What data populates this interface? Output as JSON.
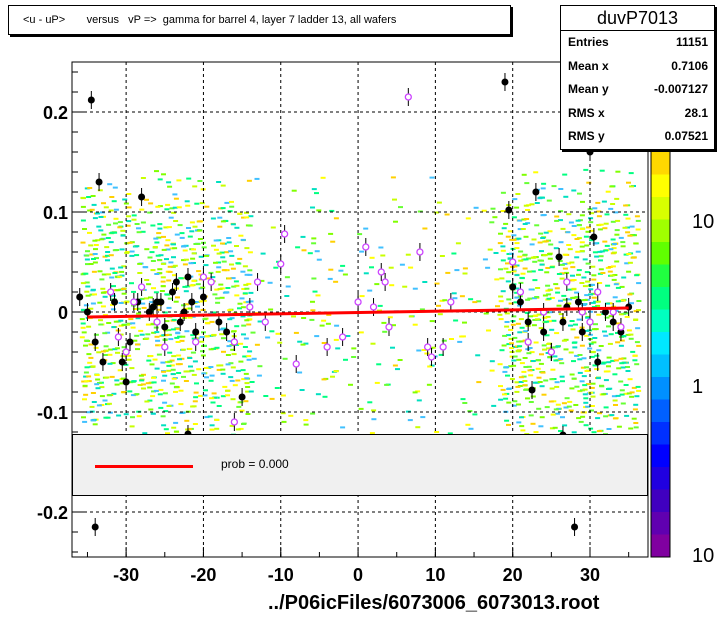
{
  "title": "<u - uP>       versus   vP =>  gamma for barrel 4, layer 7 ladder 13, all wafers",
  "stats": {
    "name": "duvP7013",
    "rows": [
      {
        "label": "Entries",
        "value": "11151"
      },
      {
        "label": "Mean x",
        "value": "0.7106"
      },
      {
        "label": "Mean y",
        "value": "-0.007127"
      },
      {
        "label": "RMS x",
        "value": "28.1"
      },
      {
        "label": "RMS y",
        "value": "0.07521"
      }
    ]
  },
  "legend": {
    "label": "prob = 0.000",
    "color": "#ff0000"
  },
  "footer": "../P06icFiles/6073006_6073013.root",
  "colors": {
    "fit": "#ff0000",
    "marker_black": "#000000",
    "marker_open": "#cc44ff"
  },
  "chart_data": {
    "type": "scatter",
    "xlim": [
      -37,
      37.5
    ],
    "ylim": [
      -0.245,
      0.25
    ],
    "x_ticks": [
      -30,
      -20,
      -10,
      0,
      10,
      20,
      30
    ],
    "x_tick_labels": [
      "-30",
      "-20",
      "-10",
      "0",
      "10",
      "20",
      "30"
    ],
    "y_ticks": [
      -0.2,
      -0.1,
      0,
      0.1,
      0.2
    ],
    "y_tick_labels": [
      "-0.2",
      "-0.1",
      "0",
      "0.1",
      "0.2"
    ],
    "grid": true,
    "colorbar_labels": [
      "10",
      "1",
      "10"
    ],
    "fit_line": {
      "x": [
        -35,
        35
      ],
      "y": [
        -0.005,
        0.004
      ]
    },
    "series": [
      {
        "marker": "filled",
        "points": [
          [
            -34.5,
            0.212
          ],
          [
            -33.5,
            0.13
          ],
          [
            -36,
            0.015
          ],
          [
            -35,
            0.0
          ],
          [
            -34,
            -0.03
          ],
          [
            -33,
            -0.05
          ],
          [
            -31.5,
            0.01
          ],
          [
            -30.5,
            -0.05
          ],
          [
            -30,
            -0.07
          ],
          [
            -29.5,
            -0.03
          ],
          [
            -28.5,
            0.01
          ],
          [
            -28,
            0.115
          ],
          [
            -27,
            0.0
          ],
          [
            -26.5,
            0.005
          ],
          [
            -26,
            0.01
          ],
          [
            -25.5,
            0.01
          ],
          [
            -25,
            -0.015
          ],
          [
            -24,
            0.02
          ],
          [
            -23.5,
            0.03
          ],
          [
            -23,
            -0.01
          ],
          [
            -22.5,
            0.0
          ],
          [
            -22,
            0.035
          ],
          [
            -21.5,
            0.01
          ],
          [
            -21,
            -0.02
          ],
          [
            -20,
            0.015
          ],
          [
            -18,
            -0.01
          ],
          [
            -17,
            -0.02
          ],
          [
            -16,
            -0.03
          ],
          [
            -15,
            -0.085
          ],
          [
            -22,
            -0.122
          ],
          [
            -34,
            -0.215
          ],
          [
            19,
            0.23
          ],
          [
            19.5,
            0.102
          ],
          [
            20,
            0.025
          ],
          [
            21,
            0.01
          ],
          [
            22,
            -0.01
          ],
          [
            22.5,
            -0.078
          ],
          [
            23,
            0.12
          ],
          [
            24,
            -0.02
          ],
          [
            25,
            -0.04
          ],
          [
            26,
            0.055
          ],
          [
            26.5,
            -0.01
          ],
          [
            27,
            0.005
          ],
          [
            28,
            0.2
          ],
          [
            28.5,
            0.01
          ],
          [
            29,
            -0.02
          ],
          [
            30,
            0.16
          ],
          [
            30.5,
            0.075
          ],
          [
            31,
            -0.05
          ],
          [
            32,
            0.0
          ],
          [
            33,
            -0.01
          ],
          [
            34,
            -0.02
          ],
          [
            35,
            0.005
          ],
          [
            26.5,
            -0.123
          ],
          [
            28,
            -0.215
          ]
        ]
      },
      {
        "marker": "open",
        "points": [
          [
            6.5,
            0.215
          ],
          [
            -9.5,
            0.078
          ],
          [
            -10,
            0.048
          ],
          [
            1,
            0.065
          ],
          [
            3,
            0.04
          ],
          [
            3.5,
            0.03
          ],
          [
            8,
            0.06
          ],
          [
            9,
            -0.035
          ],
          [
            9.5,
            -0.045
          ],
          [
            11,
            -0.035
          ],
          [
            12,
            0.01
          ],
          [
            4,
            -0.015
          ],
          [
            -8,
            -0.052
          ],
          [
            -4,
            -0.035
          ],
          [
            -2,
            -0.025
          ],
          [
            -13,
            0.03
          ],
          [
            -14,
            0.005
          ],
          [
            -12,
            -0.01
          ],
          [
            -19,
            0.03
          ],
          [
            -20,
            0.035
          ],
          [
            -21,
            -0.03
          ],
          [
            -28,
            0.025
          ],
          [
            -29,
            0.01
          ],
          [
            -30,
            -0.04
          ],
          [
            -31,
            -0.025
          ],
          [
            -32,
            0.02
          ],
          [
            -25,
            -0.035
          ],
          [
            -26,
            -0.01
          ],
          [
            -16,
            -0.11
          ],
          [
            -16,
            -0.03
          ],
          [
            20,
            0.05
          ],
          [
            21,
            0.02
          ],
          [
            22,
            -0.03
          ],
          [
            24,
            0.0
          ],
          [
            25,
            -0.04
          ],
          [
            27,
            0.03
          ],
          [
            29,
            0.0
          ],
          [
            30,
            -0.01
          ],
          [
            31,
            0.02
          ],
          [
            33,
            0.0
          ],
          [
            34,
            -0.015
          ],
          [
            0,
            0.01
          ],
          [
            2,
            0.005
          ]
        ]
      }
    ]
  }
}
